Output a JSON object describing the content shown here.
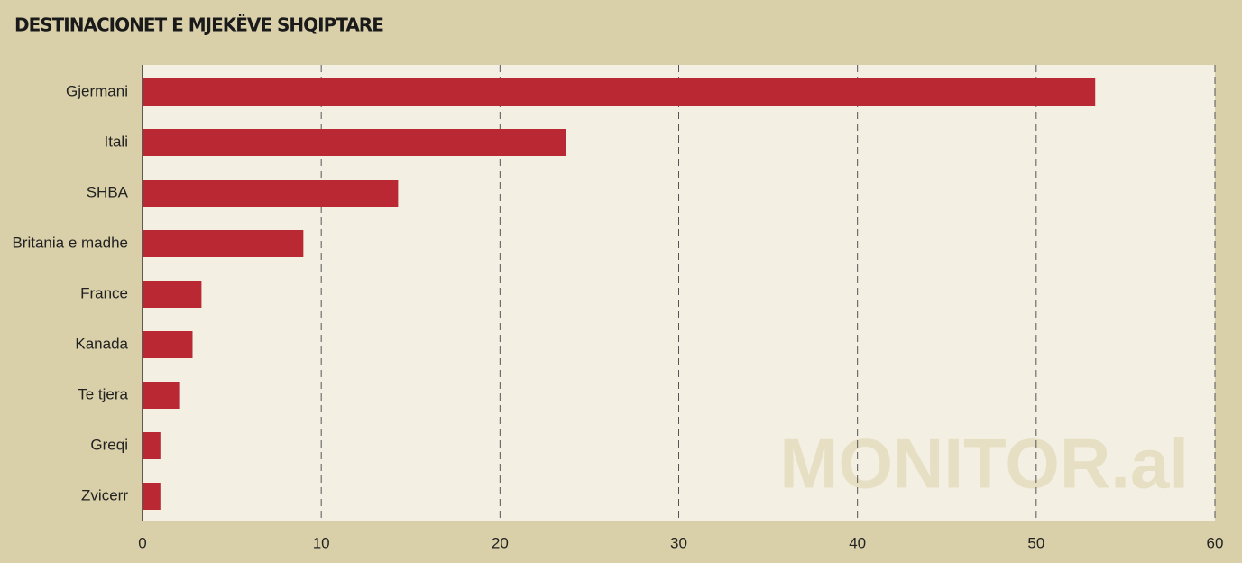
{
  "chart_data": {
    "type": "bar",
    "orientation": "horizontal",
    "title": "DESTINACIONET E MJEKËVE SHQIPTARE",
    "watermark": "MONITOR.al",
    "categories": [
      "Gjermani",
      "Itali",
      "SHBA",
      "Britania e madhe",
      "France",
      "Kanada",
      "Te tjera",
      "Greqi",
      "Zvicerr"
    ],
    "values": [
      53.3,
      23.7,
      14.3,
      9.0,
      3.3,
      2.8,
      2.1,
      1.0,
      1.0
    ],
    "color": "#b92833",
    "xlim": [
      0,
      60
    ],
    "xticks": [
      0,
      10,
      20,
      30,
      40,
      50,
      60
    ],
    "grid": true
  }
}
